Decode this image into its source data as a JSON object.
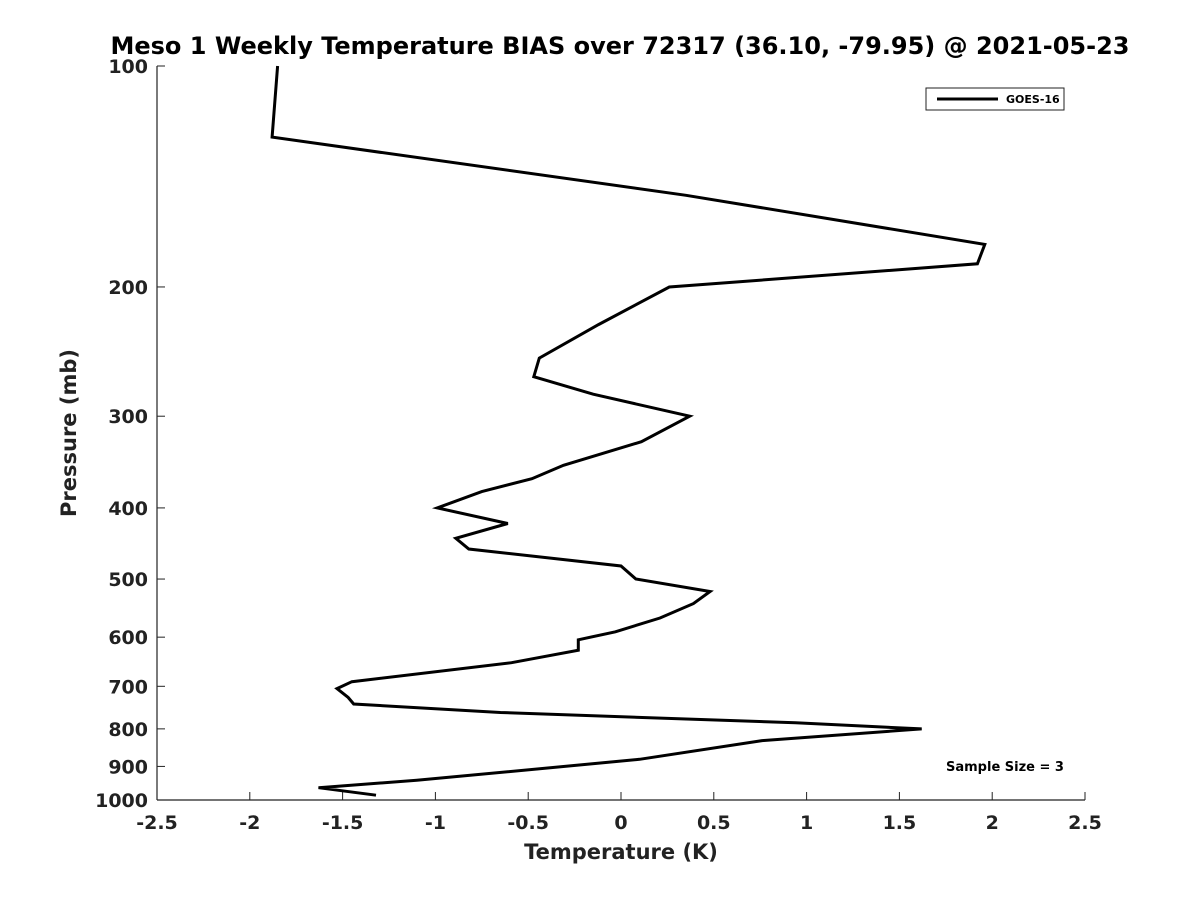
{
  "chart_data": {
    "type": "line",
    "title": "Meso 1 Weekly Temperature BIAS over 72317 (36.10, -79.95) @ 2021-05-23",
    "xlabel": "Temperature (K)",
    "ylabel": "Pressure (mb)",
    "xlim": [
      -2.5,
      2.5
    ],
    "ylim": [
      100,
      1000
    ],
    "y_scale": "log",
    "y_reversed": true,
    "x_ticks": [
      -2.5,
      -2,
      -1.5,
      -1,
      -0.5,
      0,
      0.5,
      1,
      1.5,
      2,
      2.5
    ],
    "x_tick_labels": [
      "-2.5",
      "-2",
      "-1.5",
      "-1",
      "-0.5",
      "0",
      "0.5",
      "1",
      "1.5",
      "2",
      "2.5"
    ],
    "y_ticks": [
      100,
      200,
      300,
      400,
      500,
      600,
      700,
      800,
      900,
      1000
    ],
    "y_tick_labels": [
      "100",
      "200",
      "300",
      "400",
      "500",
      "600",
      "700",
      "800",
      "900",
      "1000"
    ],
    "grid": false,
    "legend_position": "top-right",
    "annotation": "Sample Size = 3",
    "series": [
      {
        "name": "GOES-16",
        "color": "#000000",
        "points": [
          {
            "x": -1.85,
            "p": 100
          },
          {
            "x": -1.88,
            "p": 125
          },
          {
            "x": 0.35,
            "p": 150
          },
          {
            "x": 1.96,
            "p": 175
          },
          {
            "x": 1.92,
            "p": 186
          },
          {
            "x": 0.26,
            "p": 200
          },
          {
            "x": -0.12,
            "p": 225
          },
          {
            "x": -0.44,
            "p": 250
          },
          {
            "x": -0.47,
            "p": 265
          },
          {
            "x": -0.15,
            "p": 280
          },
          {
            "x": 0.37,
            "p": 300
          },
          {
            "x": 0.11,
            "p": 325
          },
          {
            "x": -0.31,
            "p": 350
          },
          {
            "x": -0.48,
            "p": 365
          },
          {
            "x": -0.75,
            "p": 380
          },
          {
            "x": -0.99,
            "p": 400
          },
          {
            "x": -0.61,
            "p": 420
          },
          {
            "x": -0.89,
            "p": 440
          },
          {
            "x": -0.82,
            "p": 455
          },
          {
            "x": 0.0,
            "p": 480
          },
          {
            "x": 0.08,
            "p": 500
          },
          {
            "x": 0.48,
            "p": 520
          },
          {
            "x": 0.39,
            "p": 540
          },
          {
            "x": 0.21,
            "p": 565
          },
          {
            "x": -0.03,
            "p": 590
          },
          {
            "x": -0.23,
            "p": 605
          },
          {
            "x": -0.23,
            "p": 625
          },
          {
            "x": -0.59,
            "p": 650
          },
          {
            "x": -1.45,
            "p": 690
          },
          {
            "x": -1.53,
            "p": 705
          },
          {
            "x": -1.47,
            "p": 725
          },
          {
            "x": -1.44,
            "p": 740
          },
          {
            "x": -0.65,
            "p": 760
          },
          {
            "x": 0.94,
            "p": 785
          },
          {
            "x": 1.62,
            "p": 800
          },
          {
            "x": 0.76,
            "p": 830
          },
          {
            "x": 0.1,
            "p": 880
          },
          {
            "x": -1.1,
            "p": 940
          },
          {
            "x": -1.63,
            "p": 962
          },
          {
            "x": -1.32,
            "p": 985
          }
        ]
      }
    ]
  }
}
